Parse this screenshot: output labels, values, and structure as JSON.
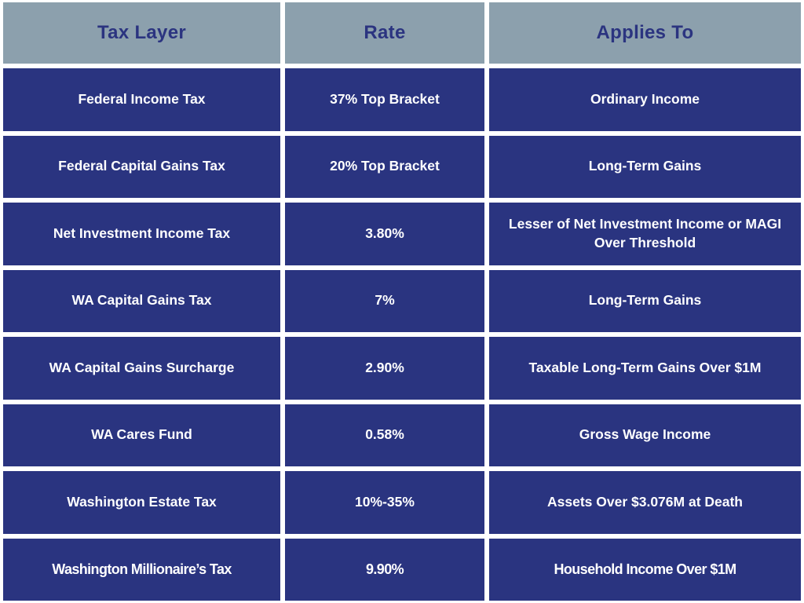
{
  "chart_data": {
    "type": "table",
    "columns": [
      "Tax Layer",
      "Rate",
      "Applies To"
    ],
    "rows": [
      [
        "Federal Income Tax",
        "37% Top Bracket",
        "Ordinary Income"
      ],
      [
        "Federal Capital Gains Tax",
        "20% Top Bracket",
        "Long-Term Gains"
      ],
      [
        "Net Investment Income Tax",
        "3.80%",
        "Lesser of Net Investment Income or MAGI Over Threshold"
      ],
      [
        "WA Capital Gains Tax",
        "7%",
        "Long-Term Gains"
      ],
      [
        "WA Capital Gains Surcharge",
        "2.90%",
        "Taxable Long-Term Gains Over $1M"
      ],
      [
        "WA Cares Fund",
        "0.58%",
        "Gross Wage Income"
      ],
      [
        "Washington Estate Tax",
        "10%-35%",
        "Assets Over $3.076M at Death"
      ],
      [
        "Washington Millionaire’s Tax",
        "9.90%",
        "Household Income Over $1M"
      ]
    ]
  },
  "colors": {
    "header_background": "#8CA0AD",
    "header_text": "#2B3480",
    "cell_background": "#2A3480",
    "cell_text": "#FFFFFF",
    "gutter": "#FFFFFF"
  }
}
